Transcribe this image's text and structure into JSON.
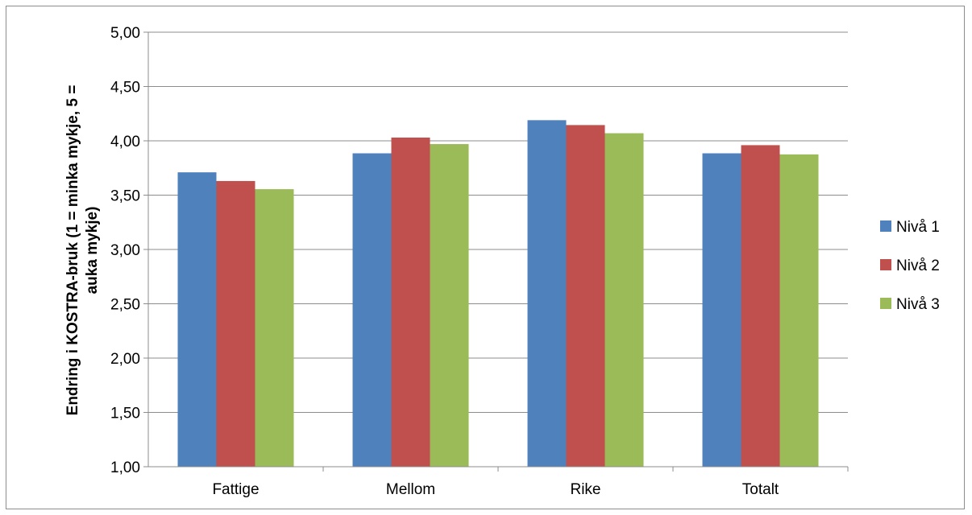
{
  "chart_data": {
    "type": "bar",
    "categories": [
      "Fattige",
      "Mellom",
      "Rike",
      "Totalt"
    ],
    "series": [
      {
        "name": "Nivå 1",
        "values": [
          3.71,
          3.885,
          4.19,
          3.885
        ],
        "color": "#4F81BD"
      },
      {
        "name": "Nivå 2",
        "values": [
          3.63,
          4.03,
          4.145,
          3.96
        ],
        "color": "#C0504D"
      },
      {
        "name": "Nivå 3",
        "values": [
          3.555,
          3.97,
          4.07,
          3.875
        ],
        "color": "#9BBB59"
      }
    ],
    "title": "",
    "xlabel": "",
    "ylabel_lines": [
      "Endring i KOSTRA-bruk (1 = minka mykje, 5 =",
      "auka mykje)"
    ],
    "ylim": [
      1.0,
      5.0
    ],
    "yticks": [
      1.0,
      1.5,
      2.0,
      2.5,
      3.0,
      3.5,
      4.0,
      4.5,
      5.0
    ],
    "ytick_labels": [
      "1,00",
      "1,50",
      "2,00",
      "2,50",
      "3,00",
      "3,50",
      "4,00",
      "4,50",
      "5,00"
    ],
    "grid": true,
    "legend_position": "right"
  }
}
